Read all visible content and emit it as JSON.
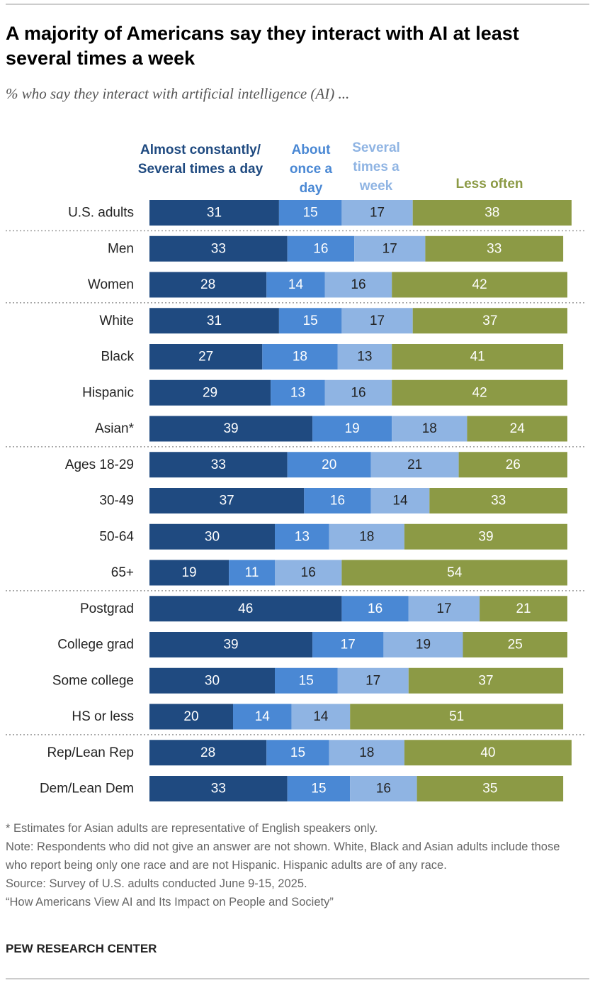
{
  "chart_data": {
    "type": "bar",
    "orientation": "horizontal",
    "stacked": true,
    "title": "A majority of Americans say they interact with AI at least several times a week",
    "subtitle": "% who say they interact with artificial intelligence (AI) ...",
    "categories": [
      "U.S. adults",
      "Men",
      "Women",
      "White",
      "Black",
      "Hispanic",
      "Asian*",
      "Ages 18-29",
      "30-49",
      "50-64",
      "65+",
      "Postgrad",
      "College grad",
      "Some college",
      "HS or less",
      "Rep/Lean Rep",
      "Dem/Lean Dem"
    ],
    "series": [
      {
        "name": "Almost constantly/ Several times a day",
        "color": "#1f4a80",
        "values": [
          31,
          33,
          28,
          31,
          27,
          29,
          39,
          33,
          37,
          30,
          19,
          46,
          39,
          30,
          20,
          28,
          33
        ]
      },
      {
        "name": "About once a day",
        "color": "#4a88d4",
        "values": [
          15,
          16,
          14,
          15,
          18,
          13,
          19,
          20,
          16,
          13,
          11,
          16,
          17,
          15,
          14,
          15,
          15
        ]
      },
      {
        "name": "Several times a week",
        "color": "#8fb4e3",
        "values": [
          17,
          17,
          16,
          17,
          13,
          16,
          18,
          21,
          14,
          18,
          16,
          17,
          19,
          17,
          14,
          18,
          16
        ]
      },
      {
        "name": "Less often",
        "color": "#8c9a45",
        "values": [
          38,
          33,
          42,
          37,
          41,
          42,
          24,
          26,
          33,
          39,
          54,
          21,
          25,
          37,
          51,
          40,
          35
        ]
      }
    ],
    "notes": [
      "* Estimates for Asian adults are representative of English speakers only.",
      "Note: Respondents who did not give an answer are not shown. White, Black and Asian adults include those who report being only one race and are not Hispanic. Hispanic adults are of any race.",
      "Source: Survey of U.S. adults conducted June 9-15, 2025.",
      "“How Americans View AI and Its Impact on People and Society”"
    ],
    "source": "PEW RESEARCH CENTER"
  }
}
